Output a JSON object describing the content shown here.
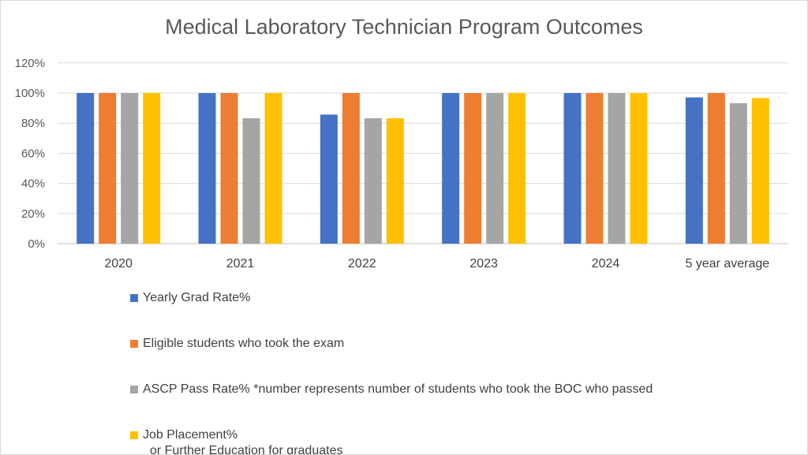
{
  "chart_data": {
    "type": "bar",
    "title": "Medical Laboratory Technician Program Outcomes",
    "categories": [
      "2020",
      "2021",
      "2022",
      "2023",
      "2024",
      "5 year average"
    ],
    "yticks": [
      "0%",
      "20%",
      "40%",
      "60%",
      "80%",
      "100%",
      "120%"
    ],
    "ylim": [
      0,
      120
    ],
    "grid": true,
    "legend_position": "bottom",
    "series": [
      {
        "name": "Yearly Grad Rate%",
        "color": "#4472C4",
        "values": [
          100,
          100,
          85.7,
          100,
          100,
          97.1
        ]
      },
      {
        "name": "Eligible students who took the exam",
        "color": "#ED7D31",
        "values": [
          100,
          100,
          100,
          100,
          100,
          100
        ]
      },
      {
        "name": "ASCP Pass Rate% *number represents number of students who took the BOC who passed",
        "color": "#A5A5A5",
        "values": [
          100,
          83.3,
          83.3,
          100,
          100,
          93.3
        ]
      },
      {
        "name": "Job Placement%\nor Further Education for graduates",
        "color": "#FFC000",
        "values": [
          100,
          100,
          83.3,
          100,
          100,
          96.7
        ]
      }
    ]
  }
}
